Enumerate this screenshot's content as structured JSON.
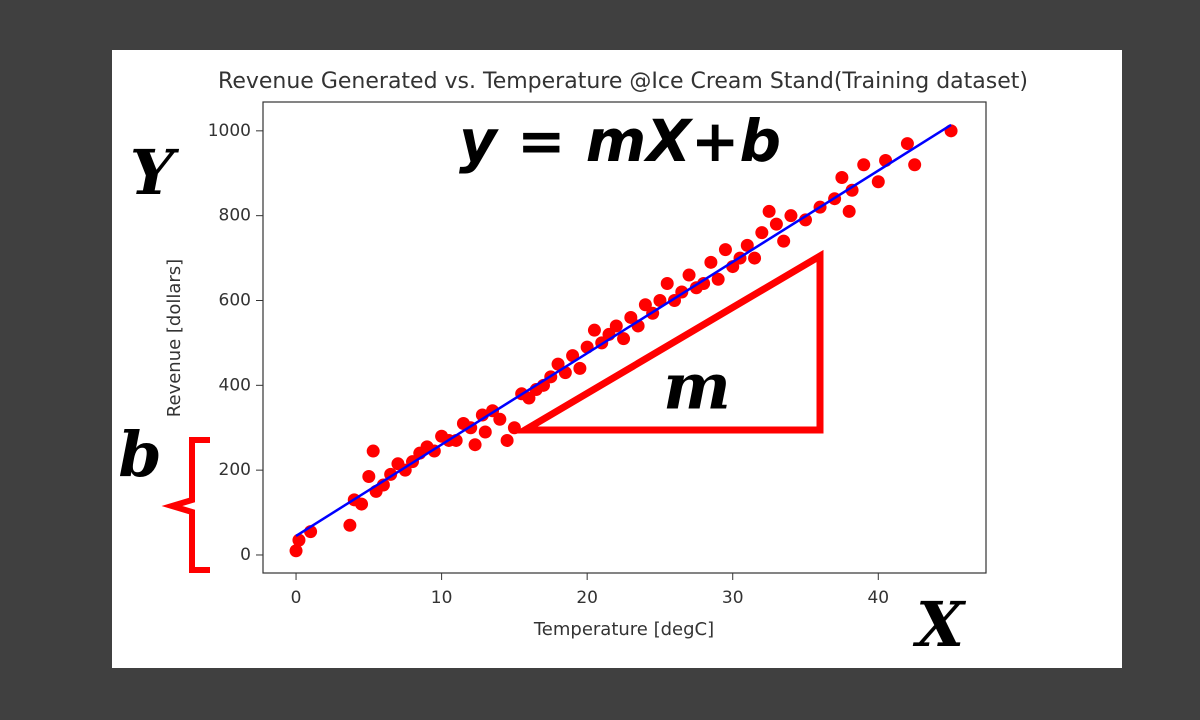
{
  "chart_data": {
    "type": "scatter",
    "title": "Revenue Generated vs. Temperature @Ice Cream Stand(Training dataset)",
    "x_label": "Temperature [degC]",
    "y_label": "Revenue [dollars]",
    "xlim": [
      -2.27,
      47.4
    ],
    "ylim": [
      -42.5,
      1068
    ],
    "xticks": [
      0,
      10,
      20,
      30,
      40
    ],
    "yticks": [
      0,
      200,
      400,
      600,
      800,
      1000
    ],
    "series": [
      {
        "type": "scatter",
        "color": "#ff0000",
        "x": [
          0,
          0.2,
          1,
          3.7,
          4,
          4.5,
          5,
          5.3,
          5.5,
          6,
          6.5,
          7,
          7.5,
          8,
          8.5,
          9,
          9.5,
          10,
          10.5,
          11,
          11.5,
          12,
          12.3,
          12.8,
          13,
          13.5,
          14,
          14.5,
          15,
          15.5,
          16,
          16.5,
          17,
          17.5,
          18,
          18.5,
          19,
          19.5,
          20,
          20.5,
          21,
          21.5,
          22,
          22.5,
          23,
          23.5,
          24,
          24.5,
          25,
          25.5,
          26,
          26.5,
          27,
          27.5,
          28,
          28.5,
          29,
          29.5,
          30,
          30.5,
          31,
          31.5,
          32,
          32.5,
          33,
          33.5,
          34,
          35,
          36,
          37,
          37.5,
          38,
          38.2,
          39,
          40,
          40.5,
          42,
          42.5,
          45
        ],
        "values": [
          10,
          35,
          55,
          70,
          130,
          120,
          185,
          245,
          150,
          165,
          190,
          215,
          200,
          220,
          240,
          255,
          245,
          280,
          270,
          270,
          310,
          300,
          260,
          330,
          290,
          340,
          320,
          270,
          300,
          380,
          370,
          390,
          400,
          420,
          450,
          430,
          470,
          440,
          490,
          530,
          500,
          520,
          540,
          510,
          560,
          540,
          590,
          570,
          600,
          640,
          600,
          620,
          660,
          630,
          640,
          690,
          650,
          720,
          680,
          700,
          730,
          700,
          760,
          810,
          780,
          740,
          800,
          790,
          820,
          840,
          890,
          810,
          860,
          920,
          880,
          930,
          970,
          920,
          1000
        ]
      },
      {
        "type": "line",
        "color": "#0000ff",
        "x": [
          0,
          45
        ],
        "values": [
          45,
          1014
        ]
      }
    ],
    "annotations": [
      {
        "text": "y = mX+b"
      },
      {
        "text": "m"
      },
      {
        "text": "Y"
      },
      {
        "text": "b"
      },
      {
        "text": "X"
      }
    ]
  }
}
